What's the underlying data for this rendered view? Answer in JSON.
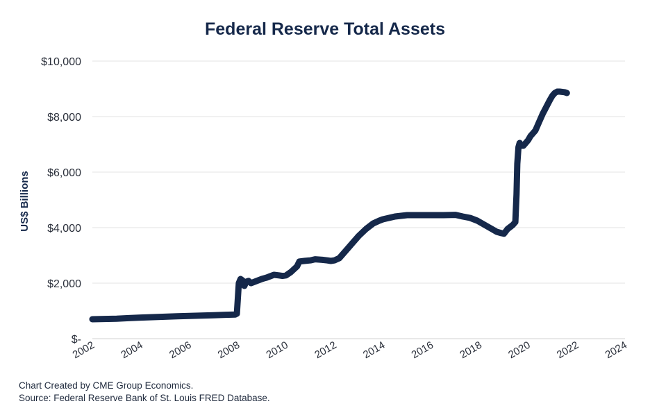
{
  "chart_data": {
    "type": "line",
    "title": "Federal Reserve Total Assets",
    "xlabel": "",
    "ylabel": "US$ Billions",
    "xlim": [
      2002,
      2024
    ],
    "ylim": [
      0,
      10000
    ],
    "x_ticks": [
      "2002",
      "2004",
      "2006",
      "2008",
      "2010",
      "2012",
      "2014",
      "2016",
      "2018",
      "2020",
      "2022",
      "2024"
    ],
    "y_ticks": [
      "$-",
      "$2,000",
      "$4,000",
      "$6,000",
      "$8,000",
      "$10,000"
    ],
    "grid": "horizontal",
    "line_color": "#15284a",
    "series": [
      {
        "x": [
          2002.0,
          2002.5,
          2003.0,
          2003.5,
          2004.0,
          2004.5,
          2005.0,
          2005.5,
          2006.0,
          2006.5,
          2007.0,
          2007.5,
          2007.9,
          2007.97,
          2008.05,
          2008.12,
          2008.2,
          2008.28,
          2008.35,
          2008.45,
          2008.55,
          2008.7,
          2008.85,
          2009.0,
          2009.2,
          2009.5,
          2009.7,
          2009.85,
          2010.0,
          2010.2,
          2010.45,
          2010.55,
          2010.75,
          2011.0,
          2011.2,
          2011.5,
          2011.7,
          2011.85,
          2012.0,
          2012.2,
          2012.5,
          2012.8,
          2013.0,
          2013.3,
          2013.6,
          2013.85,
          2014.0,
          2014.5,
          2015.0,
          2015.5,
          2016.0,
          2016.5,
          2017.0,
          2017.3,
          2017.6,
          2017.9,
          2018.2,
          2018.5,
          2018.7,
          2018.9,
          2019.0,
          2019.15,
          2019.3,
          2019.37,
          2019.42,
          2019.47,
          2019.52,
          2019.55,
          2019.6,
          2019.65,
          2019.7,
          2019.8,
          2019.9,
          2020.0,
          2020.1,
          2020.3,
          2020.45,
          2020.6,
          2020.75,
          2020.9,
          2021.0,
          2021.1,
          2021.2,
          2021.3,
          2021.5,
          2021.6
        ],
        "values": [
          700,
          710,
          720,
          740,
          760,
          775,
          790,
          805,
          820,
          830,
          845,
          860,
          870,
          900,
          2000,
          2150,
          2100,
          1900,
          2050,
          2080,
          2000,
          2050,
          2100,
          2150,
          2200,
          2300,
          2280,
          2260,
          2280,
          2400,
          2600,
          2780,
          2800,
          2820,
          2860,
          2840,
          2820,
          2800,
          2820,
          2900,
          3200,
          3500,
          3700,
          3950,
          4150,
          4250,
          4300,
          4400,
          4450,
          4450,
          4450,
          4450,
          4460,
          4400,
          4350,
          4250,
          4100,
          3950,
          3850,
          3800,
          3780,
          3950,
          4050,
          4100,
          4150,
          4200,
          5200,
          6300,
          6900,
          7050,
          6950,
          6950,
          7050,
          7150,
          7300,
          7500,
          7800,
          8100,
          8350,
          8600,
          8750,
          8850,
          8900,
          8900,
          8880,
          8850
        ]
      }
    ],
    "footer": [
      "Chart Created by CME Group Economics.",
      "Source: Federal Reserve Bank of St. Louis FRED Database."
    ]
  }
}
